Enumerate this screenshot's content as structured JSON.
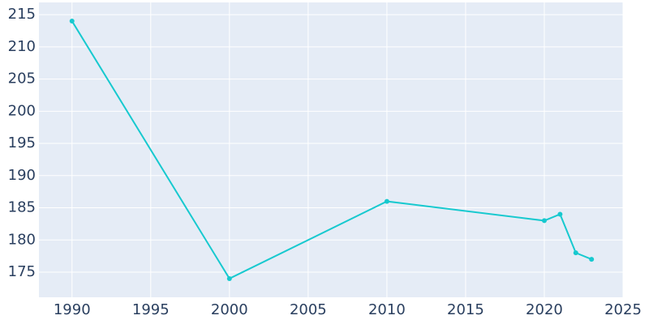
{
  "chart_data": {
    "type": "line",
    "x": [
      1990,
      2000,
      2010,
      2020,
      2021,
      2022,
      2023
    ],
    "series": [
      {
        "color": "#17c9cf",
        "values": [
          214,
          174,
          186,
          183,
          184,
          178,
          177
        ]
      }
    ],
    "xlim": [
      1987.9,
      2025
    ],
    "xticks": [
      1990,
      1995,
      2000,
      2005,
      2010,
      2015,
      2020,
      2025
    ],
    "ylim": [
      171.1,
      216.9
    ],
    "yticks": [
      175,
      180,
      185,
      190,
      195,
      200,
      205,
      210,
      215
    ],
    "grid": true
  }
}
